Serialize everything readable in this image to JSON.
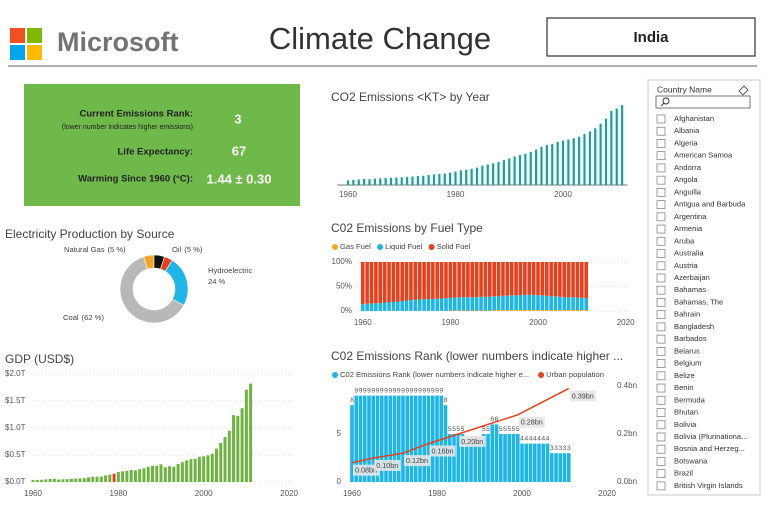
{
  "header": {
    "brand": "Microsoft",
    "title": "Climate Change",
    "country": "India"
  },
  "kpis": [
    {
      "label": "Current Emissions Rank:",
      "note": "(lower number indicates higher emissions)",
      "value": 3
    },
    {
      "label": "Life Expectancy:",
      "value": 67
    },
    {
      "label": "Warming Since 1960 (°C):",
      "value": "1.44 ± 0.30"
    }
  ],
  "chart_data": [
    {
      "type": "bar",
      "title": "CO2 Emissions <KT> by Year",
      "x": [
        1960,
        1961,
        1962,
        1963,
        1964,
        1965,
        1966,
        1967,
        1968,
        1969,
        1970,
        1971,
        1972,
        1973,
        1974,
        1975,
        1976,
        1977,
        1978,
        1979,
        1980,
        1981,
        1982,
        1983,
        1984,
        1985,
        1986,
        1987,
        1988,
        1989,
        1990,
        1991,
        1992,
        1993,
        1994,
        1995,
        1996,
        1997,
        1998,
        1999,
        2000,
        2001,
        2002,
        2003,
        2004,
        2005,
        2006,
        2007,
        2008,
        2009,
        2010,
        2011
      ],
      "values": [
        120000,
        130000,
        143000,
        155000,
        150000,
        165000,
        175000,
        180000,
        190000,
        195000,
        200000,
        210000,
        220000,
        230000,
        240000,
        260000,
        275000,
        290000,
        300000,
        320000,
        350000,
        380000,
        400000,
        420000,
        450000,
        500000,
        530000,
        560000,
        600000,
        650000,
        690000,
        740000,
        780000,
        810000,
        860000,
        920000,
        990000,
        1040000,
        1060000,
        1120000,
        1150000,
        1180000,
        1210000,
        1250000,
        1320000,
        1390000,
        1470000,
        1590000,
        1720000,
        1920000,
        1980000,
        2070000
      ],
      "color": "#1aa09a",
      "xlim": [
        1958,
        2012
      ],
      "xticks": [
        1960,
        1980,
        2000
      ],
      "ylim": [
        0,
        2100000
      ]
    },
    {
      "type": "stacked_bar",
      "title": "C02 Emissions by Fuel Type",
      "x": [
        1960,
        1961,
        1962,
        1963,
        1964,
        1965,
        1966,
        1967,
        1968,
        1969,
        1970,
        1971,
        1972,
        1973,
        1974,
        1975,
        1976,
        1977,
        1978,
        1979,
        1980,
        1981,
        1982,
        1983,
        1984,
        1985,
        1986,
        1987,
        1988,
        1989,
        1990,
        1991,
        1992,
        1993,
        1994,
        1995,
        1996,
        1997,
        1998,
        1999,
        2000,
        2001,
        2002,
        2003,
        2004,
        2005,
        2006,
        2007,
        2008,
        2009,
        2010,
        2011
      ],
      "series": [
        {
          "name": "Gas Fuel",
          "color": "#f5a623",
          "values": [
            0,
            0,
            0,
            0,
            0,
            0.3,
            0.3,
            0.3,
            0.3,
            0.3,
            0.3,
            0.3,
            0.3,
            0.3,
            0.3,
            0.3,
            0.3,
            0.3,
            0.3,
            0.3,
            1,
            1,
            1,
            1,
            1,
            1,
            1,
            1,
            1,
            1,
            2,
            2,
            2,
            2,
            2,
            2,
            2,
            2,
            2,
            2,
            2,
            2,
            2,
            2,
            2,
            2,
            2,
            2,
            2,
            2,
            2,
            2
          ]
        },
        {
          "name": "Liquid Fuel",
          "color": "#1eb6e8",
          "values": [
            14,
            15,
            15,
            16,
            16,
            17,
            18,
            18,
            19,
            20,
            21,
            22,
            23,
            23,
            24,
            24,
            24,
            25,
            25,
            26,
            26,
            26,
            27,
            27,
            27,
            27,
            27,
            28,
            28,
            28,
            28,
            28,
            29,
            29,
            30,
            30,
            30,
            31,
            31,
            31,
            30,
            30,
            29,
            28,
            28,
            27,
            26,
            26,
            26,
            25,
            25,
            24
          ]
        },
        {
          "name": "Solid Fuel",
          "color": "#e8401c",
          "values": [
            86,
            85,
            85,
            84,
            84,
            82.7,
            81.7,
            81.7,
            80.7,
            79.7,
            78.7,
            77.7,
            76.7,
            76.7,
            75.7,
            75.7,
            75.7,
            74.7,
            74.7,
            73.7,
            73,
            73,
            72,
            72,
            72,
            72,
            72,
            71,
            71,
            71,
            70,
            70,
            69,
            69,
            68,
            68,
            68,
            67,
            67,
            67,
            68,
            68,
            69,
            70,
            70,
            71,
            72,
            72,
            72,
            73,
            73,
            74
          ]
        }
      ],
      "ylim": [
        0,
        100
      ],
      "yticks": [
        {
          "value": 0,
          "label": "0%"
        },
        {
          "value": 50,
          "label": "50%"
        },
        {
          "value": 100,
          "label": "100%"
        }
      ],
      "xlim": [
        1958,
        2021
      ],
      "xticks": [
        1960,
        1980,
        2000,
        2020
      ],
      "grid": true
    },
    {
      "type": "donut",
      "title": "Electricity Production by Source",
      "categories": [
        "Natural Gas",
        "Oil",
        null,
        "Hydroelectric",
        "Coal"
      ],
      "values": [
        5,
        5,
        4,
        24,
        62
      ],
      "value_labels": [
        "(5 %)",
        "(5 %)",
        null,
        "24 %",
        "(62 %)"
      ],
      "colors": [
        "#f5a623",
        "#111111",
        "#e8401c",
        "#1eb6e8",
        "#b8b8b8"
      ]
    },
    {
      "type": "bar",
      "title": "GDP (USD$)",
      "x": [
        1960,
        1961,
        1962,
        1963,
        1964,
        1965,
        1966,
        1967,
        1968,
        1969,
        1970,
        1971,
        1972,
        1973,
        1974,
        1975,
        1976,
        1977,
        1978,
        1979,
        1980,
        1981,
        1982,
        1983,
        1984,
        1985,
        1986,
        1987,
        1988,
        1989,
        1990,
        1991,
        1992,
        1993,
        1994,
        1995,
        1996,
        1997,
        1998,
        1999,
        2000,
        2001,
        2002,
        2003,
        2004,
        2005,
        2006,
        2007,
        2008,
        2009,
        2010,
        2011
      ],
      "values": [
        0.037,
        0.039,
        0.042,
        0.048,
        0.056,
        0.059,
        0.045,
        0.05,
        0.053,
        0.058,
        0.062,
        0.067,
        0.071,
        0.085,
        0.099,
        0.098,
        0.102,
        0.121,
        0.137,
        0.153,
        0.186,
        0.196,
        0.204,
        0.222,
        0.215,
        0.237,
        0.253,
        0.284,
        0.301,
        0.301,
        0.327,
        0.274,
        0.293,
        0.284,
        0.333,
        0.367,
        0.4,
        0.423,
        0.429,
        0.467,
        0.477,
        0.494,
        0.524,
        0.618,
        0.722,
        0.834,
        0.949,
        1.239,
        1.224,
        1.365,
        1.709,
        1.823
      ],
      "color": "#6cb33f",
      "highlight_x": 1979,
      "highlight_color": "#e0402a",
      "ylim": [
        0,
        2
      ],
      "yticks": [
        {
          "value": 0,
          "label": "$0.0T"
        },
        {
          "value": 0.5,
          "label": "$0.5T"
        },
        {
          "value": 1,
          "label": "$1.0T"
        },
        {
          "value": 1.5,
          "label": "$1.5T"
        },
        {
          "value": 2,
          "label": "$2.0T"
        }
      ],
      "xlim": [
        1958,
        2021
      ],
      "xticks": [
        1960,
        1980,
        2000,
        2020
      ],
      "grid": true
    },
    {
      "type": "combo",
      "title": "C02 Emissions Rank (lower numbers indicate higher ...",
      "x": [
        1960,
        1961,
        1962,
        1963,
        1964,
        1965,
        1966,
        1967,
        1968,
        1969,
        1970,
        1971,
        1972,
        1973,
        1974,
        1975,
        1976,
        1977,
        1978,
        1979,
        1980,
        1981,
        1982,
        1983,
        1984,
        1985,
        1986,
        1987,
        1988,
        1989,
        1990,
        1991,
        1992,
        1993,
        1994,
        1995,
        1996,
        1997,
        1998,
        1999,
        2000,
        2001,
        2002,
        2003,
        2004,
        2005,
        2006,
        2007,
        2008,
        2009,
        2010,
        2011
      ],
      "series": [
        {
          "name": "C02 Emissions Rank (lower numbers indicate higher e...",
          "color": "#1eb6e8",
          "type": "bar",
          "values": [
            8,
            9,
            9,
            9,
            9,
            9,
            9,
            9,
            9,
            9,
            9,
            9,
            9,
            9,
            9,
            9,
            9,
            9,
            9,
            9,
            9,
            9,
            8,
            5,
            5,
            5,
            5,
            4,
            4,
            4,
            4,
            5,
            5,
            6,
            6,
            5,
            5,
            5,
            5,
            5,
            4,
            4,
            4,
            4,
            4,
            4,
            4,
            3,
            3,
            3,
            3,
            3
          ]
        },
        {
          "name": "Urban population",
          "color": "#e8401c",
          "type": "line",
          "axis": "y2",
          "x": [
            1960,
            1965,
            1972,
            1978,
            1985,
            1999,
            2011
          ],
          "values": [
            0.08,
            0.1,
            0.12,
            0.16,
            0.2,
            0.28,
            0.39
          ],
          "value_labels": [
            "0.08bn",
            "0.10bn",
            "0.12bn",
            "0.16bn",
            "0.20bn",
            "0.28bn",
            "0.39bn"
          ]
        }
      ],
      "ylim": [
        0,
        10
      ],
      "yticks": [
        0,
        5
      ],
      "y2lim": [
        0,
        0.4
      ],
      "y2ticks": [
        {
          "value": 0,
          "label": "0.0bn"
        },
        {
          "value": 0.2,
          "label": "0.2bn"
        },
        {
          "value": 0.4,
          "label": "0.4bn"
        }
      ],
      "xlim": [
        1958,
        2021
      ],
      "xticks": [
        1960,
        1980,
        2000,
        2020
      ]
    }
  ],
  "slicer": {
    "title": "Country Name",
    "items": [
      "Afghanistan",
      "Albania",
      "Algeria",
      "American Samoa",
      "Andorra",
      "Angola",
      "Anguilla",
      "Antigua and Barbuda",
      "Argentina",
      "Armenia",
      "Aruba",
      "Australia",
      "Austria",
      "Azerbaijan",
      "Bahamas",
      "Bahamas, The",
      "Bahrain",
      "Bangladesh",
      "Barbados",
      "Belarus",
      "Belgium",
      "Belize",
      "Benin",
      "Bermuda",
      "Bhutan",
      "Bolivia",
      "Bolivia (Plurinationa...",
      "Bosnia and Herzeg...",
      "Botswana",
      "Brazil",
      "British Virgin Islands"
    ]
  }
}
